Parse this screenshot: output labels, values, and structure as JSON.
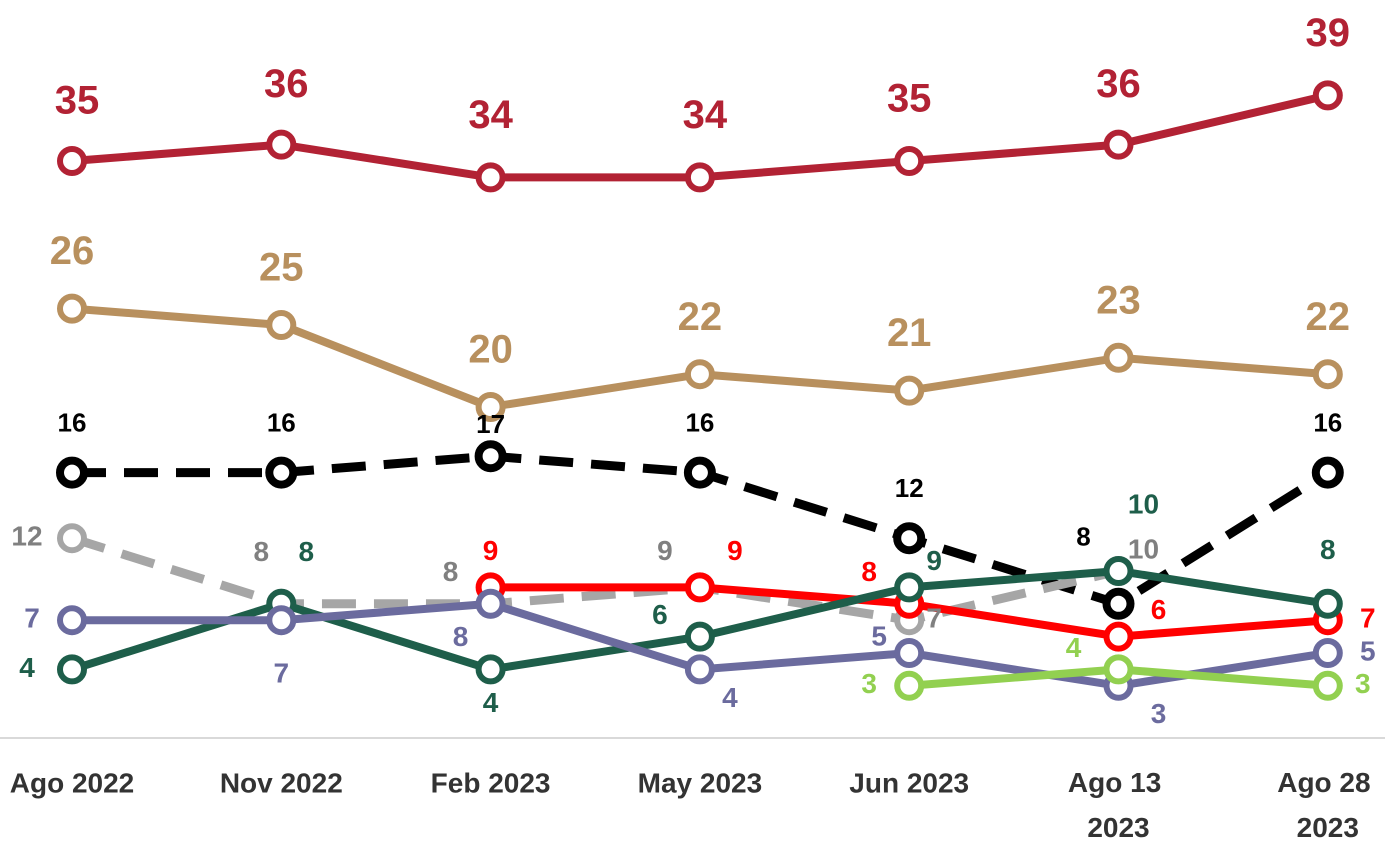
{
  "chart_data": {
    "type": "line",
    "categories": [
      "Ago 2022",
      "Nov 2022",
      "Feb 2023",
      "May 2023",
      "Jun 2023",
      "Ago 13 2023",
      "Ago 28 2023"
    ],
    "ylim": [
      0,
      40
    ],
    "series": [
      {
        "color": "#b22234",
        "dashed": false,
        "values": [
          35,
          36,
          34,
          34,
          35,
          36,
          39
        ]
      },
      {
        "color": "#b8905e",
        "dashed": false,
        "values": [
          26,
          25,
          20,
          22,
          21,
          23,
          22
        ]
      },
      {
        "color": "#000000",
        "dashed": true,
        "values": [
          16,
          16,
          17,
          16,
          12,
          8,
          16
        ]
      },
      {
        "color": "#a6a6a6",
        "dashed": true,
        "values": [
          12,
          8,
          8,
          9,
          7,
          10,
          null
        ]
      },
      {
        "color": "#ff0000",
        "dashed": false,
        "values": [
          null,
          null,
          9,
          9,
          8,
          6,
          7
        ]
      },
      {
        "color": "#1e5e4a",
        "dashed": false,
        "values": [
          4,
          8,
          4,
          6,
          9,
          10,
          8
        ]
      },
      {
        "color": "#6b6b9e",
        "dashed": false,
        "values": [
          7,
          7,
          8,
          4,
          5,
          3,
          5
        ]
      },
      {
        "color": "#92d050",
        "dashed": false,
        "values": [
          null,
          null,
          null,
          null,
          3,
          4,
          3
        ]
      }
    ]
  }
}
